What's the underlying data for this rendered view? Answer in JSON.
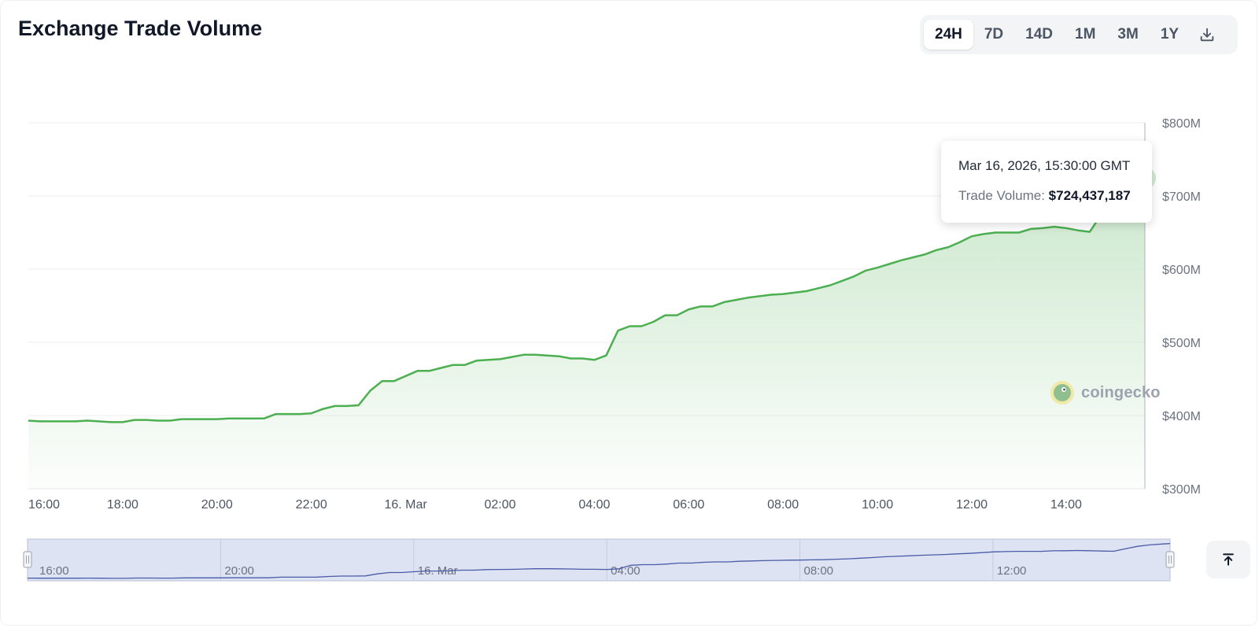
{
  "header": {
    "title": "Exchange Trade Volume",
    "ranges": [
      "24H",
      "7D",
      "14D",
      "1M",
      "3M",
      "1Y"
    ],
    "active_range": "24H",
    "download_icon": "download-icon"
  },
  "tooltip": {
    "date": "Mar 16, 2026, 15:30:00 GMT",
    "label": "Trade Volume:",
    "value": "$724,437,187"
  },
  "watermark": {
    "text": "coingecko",
    "icon": "coingecko-logo-icon"
  },
  "navigator": {
    "tick_labels": [
      "16:00",
      "20:00",
      "16. Mar",
      "04:00",
      "08:00",
      "12:00"
    ]
  },
  "scroll_top_icon": "arrow-up-to-line-icon",
  "colors": {
    "line": "#4caf50",
    "area_top": "#c8e6c9",
    "navigator_fill": "#dde3f2",
    "navigator_line": "#4a5ca8"
  },
  "chart_data": {
    "type": "area",
    "x_unit": "hours from 16:00, 15 Mar",
    "x_ticks": [
      {
        "x": 0,
        "label": "16:00"
      },
      {
        "x": 2,
        "label": "18:00"
      },
      {
        "x": 4,
        "label": "20:00"
      },
      {
        "x": 6,
        "label": "22:00"
      },
      {
        "x": 8,
        "label": "16. Mar"
      },
      {
        "x": 10,
        "label": "02:00"
      },
      {
        "x": 12,
        "label": "04:00"
      },
      {
        "x": 14,
        "label": "06:00"
      },
      {
        "x": 16,
        "label": "08:00"
      },
      {
        "x": 18,
        "label": "10:00"
      },
      {
        "x": 20,
        "label": "12:00"
      },
      {
        "x": 22,
        "label": "14:00"
      }
    ],
    "y_ticks": [
      {
        "y": 300,
        "label": "$300M"
      },
      {
        "y": 400,
        "label": "$400M"
      },
      {
        "y": 500,
        "label": "$500M"
      },
      {
        "y": 600,
        "label": "$600M"
      },
      {
        "y": 700,
        "label": "$700M"
      },
      {
        "y": 800,
        "label": "$800M"
      }
    ],
    "ylim": [
      300,
      800
    ],
    "xlim": [
      0,
      23.67
    ],
    "y_unit": "$M",
    "grid": true,
    "series": [
      {
        "name": "Trade Volume",
        "points": [
          [
            0,
            393
          ],
          [
            0.25,
            392
          ],
          [
            0.5,
            392
          ],
          [
            0.75,
            392
          ],
          [
            1,
            392
          ],
          [
            1.25,
            393
          ],
          [
            1.5,
            392
          ],
          [
            1.75,
            391
          ],
          [
            2,
            391
          ],
          [
            2.25,
            394
          ],
          [
            2.5,
            394
          ],
          [
            2.75,
            393
          ],
          [
            3,
            393
          ],
          [
            3.25,
            395
          ],
          [
            3.5,
            395
          ],
          [
            3.75,
            395
          ],
          [
            4,
            395
          ],
          [
            4.25,
            396
          ],
          [
            4.5,
            396
          ],
          [
            4.75,
            396
          ],
          [
            5,
            396
          ],
          [
            5.25,
            402
          ],
          [
            5.5,
            402
          ],
          [
            5.75,
            402
          ],
          [
            6,
            403
          ],
          [
            6.25,
            409
          ],
          [
            6.5,
            413
          ],
          [
            6.75,
            413
          ],
          [
            7,
            414
          ],
          [
            7.25,
            434
          ],
          [
            7.5,
            447
          ],
          [
            7.75,
            447
          ],
          [
            8,
            454
          ],
          [
            8.25,
            461
          ],
          [
            8.5,
            461
          ],
          [
            8.75,
            465
          ],
          [
            9,
            469
          ],
          [
            9.25,
            469
          ],
          [
            9.5,
            475
          ],
          [
            9.75,
            476
          ],
          [
            10,
            477
          ],
          [
            10.25,
            480
          ],
          [
            10.5,
            483
          ],
          [
            10.75,
            483
          ],
          [
            11,
            482
          ],
          [
            11.25,
            481
          ],
          [
            11.5,
            478
          ],
          [
            11.75,
            478
          ],
          [
            12,
            476
          ],
          [
            12.25,
            482
          ],
          [
            12.5,
            516
          ],
          [
            12.75,
            522
          ],
          [
            13,
            522
          ],
          [
            13.25,
            528
          ],
          [
            13.5,
            537
          ],
          [
            13.75,
            537
          ],
          [
            14,
            545
          ],
          [
            14.25,
            549
          ],
          [
            14.5,
            549
          ],
          [
            14.75,
            555
          ],
          [
            15,
            558
          ],
          [
            15.25,
            561
          ],
          [
            15.5,
            563
          ],
          [
            15.75,
            565
          ],
          [
            16,
            566
          ],
          [
            16.25,
            568
          ],
          [
            16.5,
            570
          ],
          [
            16.75,
            574
          ],
          [
            17,
            578
          ],
          [
            17.25,
            584
          ],
          [
            17.5,
            590
          ],
          [
            17.75,
            598
          ],
          [
            18,
            602
          ],
          [
            18.25,
            607
          ],
          [
            18.5,
            612
          ],
          [
            18.75,
            616
          ],
          [
            19,
            620
          ],
          [
            19.25,
            626
          ],
          [
            19.5,
            630
          ],
          [
            19.75,
            637
          ],
          [
            20,
            645
          ],
          [
            20.25,
            648
          ],
          [
            20.5,
            650
          ],
          [
            20.75,
            650
          ],
          [
            21,
            650
          ],
          [
            21.25,
            655
          ],
          [
            21.5,
            656
          ],
          [
            21.75,
            658
          ],
          [
            22,
            656
          ],
          [
            22.25,
            653
          ],
          [
            22.5,
            651
          ],
          [
            22.75,
            675
          ],
          [
            23,
            698
          ],
          [
            23.25,
            712
          ],
          [
            23.5,
            720
          ],
          [
            23.67,
            724.437187
          ]
        ]
      }
    ]
  }
}
